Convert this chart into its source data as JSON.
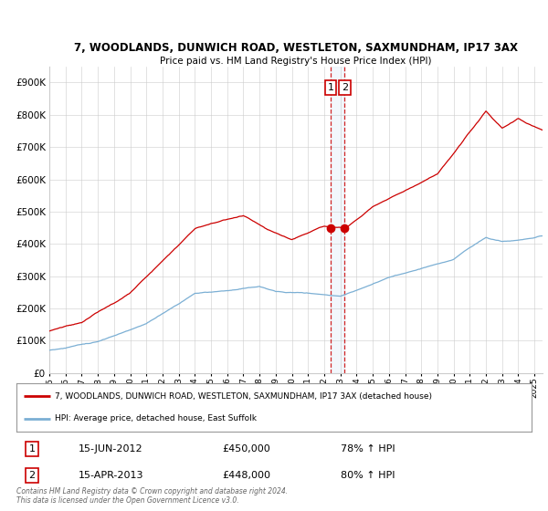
{
  "title_line1": "7, WOODLANDS, DUNWICH ROAD, WESTLETON, SAXMUNDHAM, IP17 3AX",
  "title_line2": "Price paid vs. HM Land Registry's House Price Index (HPI)",
  "ylim": [
    0,
    950000
  ],
  "yticks": [
    0,
    100000,
    200000,
    300000,
    400000,
    500000,
    600000,
    700000,
    800000,
    900000
  ],
  "ytick_labels": [
    "£0",
    "£100K",
    "£200K",
    "£300K",
    "£400K",
    "£500K",
    "£600K",
    "£700K",
    "£800K",
    "£900K"
  ],
  "hpi_color": "#7BAFD4",
  "price_color": "#CC0000",
  "annotation_color": "#CC0000",
  "sale1_date": "15-JUN-2012",
  "sale1_price": "£450,000",
  "sale1_hpi": "78% ↑ HPI",
  "sale2_date": "15-APR-2013",
  "sale2_price": "£448,000",
  "sale2_hpi": "80% ↑ HPI",
  "legend_line1": "7, WOODLANDS, DUNWICH ROAD, WESTLETON, SAXMUNDHAM, IP17 3AX (detached house)",
  "legend_line2": "HPI: Average price, detached house, East Suffolk",
  "footer": "Contains HM Land Registry data © Crown copyright and database right 2024.\nThis data is licensed under the Open Government Licence v3.0.",
  "bg_color": "#FFFFFF",
  "plot_bg_color": "#FFFFFF",
  "grid_color": "#CCCCCC"
}
